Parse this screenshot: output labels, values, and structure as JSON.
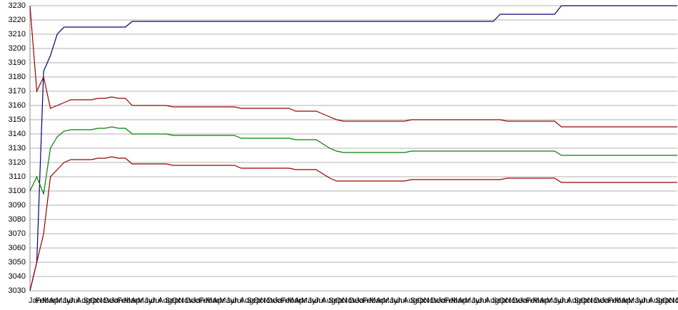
{
  "chart_data": {
    "type": "line",
    "categories": [
      "Jan",
      "Feb",
      "Mar",
      "Apr",
      "May",
      "Jun",
      "Jul",
      "Aug",
      "Sep",
      "Oct",
      "Nov",
      "Dec",
      "Jan",
      "Feb",
      "Mar",
      "Apr",
      "May",
      "Jun",
      "Jul",
      "Aug",
      "Sep",
      "Oct",
      "Nov",
      "Dec",
      "Jan",
      "Feb",
      "Mar",
      "Apr",
      "May",
      "Jun",
      "Jul",
      "Aug",
      "Sep",
      "Oct",
      "Nov",
      "Dec",
      "Jan",
      "Feb",
      "Mar",
      "Apr",
      "May",
      "Jun",
      "Jul",
      "Aug",
      "Sep",
      "Oct",
      "Nov",
      "Dec",
      "Jan",
      "Feb",
      "Mar",
      "Apr",
      "May",
      "Jun",
      "Jul",
      "Aug",
      "Sep",
      "Oct",
      "Nov",
      "Dec",
      "Jan",
      "Feb",
      "Mar",
      "Apr",
      "May",
      "Jun",
      "Jul",
      "Aug",
      "Sep",
      "Oct",
      "Nov",
      "Dec",
      "Jan",
      "Feb",
      "Mar",
      "Apr",
      "May",
      "Jun",
      "Jul",
      "Aug",
      "Sep",
      "Oct",
      "Nov",
      "Dec",
      "Jan",
      "Feb",
      "Mar",
      "Apr",
      "May",
      "Jun",
      "Jul",
      "Aug",
      "Sep",
      "Oct",
      "Nov",
      "Dec"
    ],
    "series": [
      {
        "color": "#00007f",
        "values": [
          3030,
          3050,
          3184,
          3195,
          3210,
          3215,
          3215,
          3215,
          3215,
          3215,
          3215,
          3215,
          3215,
          3215,
          3215,
          3219,
          3219,
          3219,
          3219,
          3219,
          3219,
          3219,
          3219,
          3219,
          3219,
          3219,
          3219,
          3219,
          3219,
          3219,
          3219,
          3219,
          3219,
          3219,
          3219,
          3219,
          3219,
          3219,
          3219,
          3219,
          3219,
          3219,
          3219,
          3219,
          3219,
          3219,
          3219,
          3219,
          3219,
          3219,
          3219,
          3219,
          3219,
          3219,
          3219,
          3219,
          3219,
          3219,
          3219,
          3219,
          3219,
          3219,
          3219,
          3219,
          3219,
          3219,
          3219,
          3219,
          3219,
          3224,
          3224,
          3224,
          3224,
          3224,
          3224,
          3224,
          3224,
          3224,
          3230,
          3230,
          3230,
          3230,
          3230,
          3230,
          3230,
          3230,
          3230,
          3230,
          3230,
          3230,
          3230,
          3230,
          3230,
          3230,
          3230,
          3230
        ]
      },
      {
        "color": "#990000",
        "values": [
          3230,
          3170,
          3180,
          3158,
          3160,
          3162,
          3164,
          3164,
          3164,
          3164,
          3165,
          3165,
          3166,
          3165,
          3165,
          3160,
          3160,
          3160,
          3160,
          3160,
          3160,
          3159,
          3159,
          3159,
          3159,
          3159,
          3159,
          3159,
          3159,
          3159,
          3159,
          3158,
          3158,
          3158,
          3158,
          3158,
          3158,
          3158,
          3158,
          3156,
          3156,
          3156,
          3156,
          3154,
          3152,
          3150,
          3149,
          3149,
          3149,
          3149,
          3149,
          3149,
          3149,
          3149,
          3149,
          3149,
          3150,
          3150,
          3150,
          3150,
          3150,
          3150,
          3150,
          3150,
          3150,
          3150,
          3150,
          3150,
          3150,
          3150,
          3149,
          3149,
          3149,
          3149,
          3149,
          3149,
          3149,
          3149,
          3145,
          3145,
          3145,
          3145,
          3145,
          3145,
          3145,
          3145,
          3145,
          3145,
          3145,
          3145,
          3145,
          3145,
          3145,
          3145,
          3145,
          3145
        ]
      },
      {
        "color": "#007f00",
        "values": [
          3100,
          3110,
          3098,
          3130,
          3138,
          3142,
          3143,
          3143,
          3143,
          3143,
          3144,
          3144,
          3145,
          3144,
          3144,
          3140,
          3140,
          3140,
          3140,
          3140,
          3140,
          3139,
          3139,
          3139,
          3139,
          3139,
          3139,
          3139,
          3139,
          3139,
          3139,
          3137,
          3137,
          3137,
          3137,
          3137,
          3137,
          3137,
          3137,
          3136,
          3136,
          3136,
          3136,
          3133,
          3130,
          3128,
          3127,
          3127,
          3127,
          3127,
          3127,
          3127,
          3127,
          3127,
          3127,
          3127,
          3128,
          3128,
          3128,
          3128,
          3128,
          3128,
          3128,
          3128,
          3128,
          3128,
          3128,
          3128,
          3128,
          3128,
          3128,
          3128,
          3128,
          3128,
          3128,
          3128,
          3128,
          3128,
          3125,
          3125,
          3125,
          3125,
          3125,
          3125,
          3125,
          3125,
          3125,
          3125,
          3125,
          3125,
          3125,
          3125,
          3125,
          3125,
          3125,
          3125
        ]
      },
      {
        "color": "#990000",
        "values": [
          3030,
          3050,
          3070,
          3110,
          3115,
          3120,
          3122,
          3122,
          3122,
          3122,
          3123,
          3123,
          3124,
          3123,
          3123,
          3119,
          3119,
          3119,
          3119,
          3119,
          3119,
          3118,
          3118,
          3118,
          3118,
          3118,
          3118,
          3118,
          3118,
          3118,
          3118,
          3116,
          3116,
          3116,
          3116,
          3116,
          3116,
          3116,
          3116,
          3115,
          3115,
          3115,
          3115,
          3112,
          3109,
          3107,
          3107,
          3107,
          3107,
          3107,
          3107,
          3107,
          3107,
          3107,
          3107,
          3107,
          3108,
          3108,
          3108,
          3108,
          3108,
          3108,
          3108,
          3108,
          3108,
          3108,
          3108,
          3108,
          3108,
          3108,
          3109,
          3109,
          3109,
          3109,
          3109,
          3109,
          3109,
          3109,
          3106,
          3106,
          3106,
          3106,
          3106,
          3106,
          3106,
          3106,
          3106,
          3106,
          3106,
          3106,
          3106,
          3106,
          3106,
          3106,
          3106,
          3106
        ]
      }
    ],
    "ylim": [
      3030,
      3230
    ],
    "yticks": [
      3030,
      3040,
      3050,
      3060,
      3070,
      3080,
      3090,
      3100,
      3110,
      3120,
      3130,
      3140,
      3150,
      3160,
      3170,
      3180,
      3190,
      3200,
      3210,
      3220,
      3230
    ],
    "grid": true
  }
}
